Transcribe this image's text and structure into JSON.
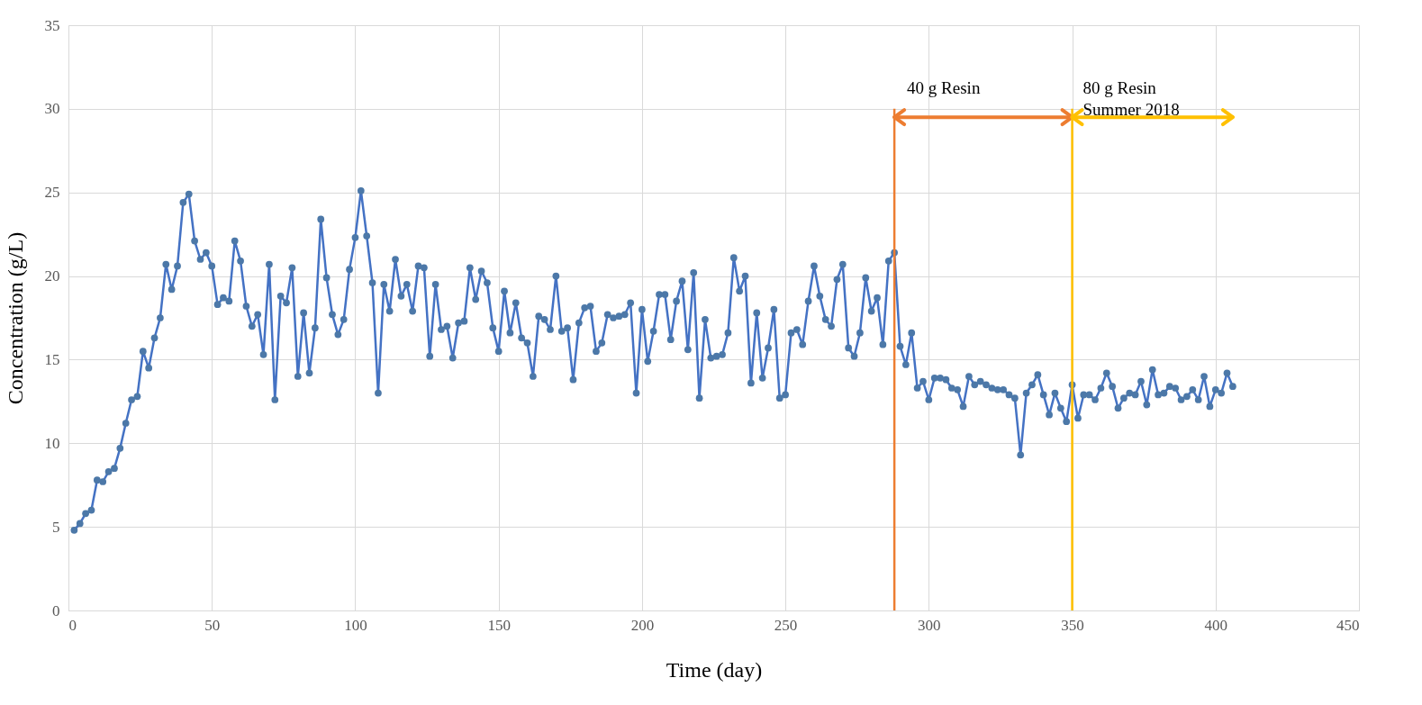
{
  "chart_data": {
    "type": "line",
    "xlabel": "Time (day)",
    "ylabel": "Concentration  (g/L)",
    "xlim": [
      0,
      450
    ],
    "xticks": [
      0,
      50,
      100,
      150,
      200,
      250,
      300,
      350,
      400,
      450
    ],
    "ylim": [
      0,
      35
    ],
    "yticks": [
      0,
      5,
      10,
      15,
      20,
      25,
      30,
      35
    ],
    "grid": true,
    "marker": "circle",
    "line_style": "solid",
    "x": [
      2,
      4,
      6,
      8,
      10,
      12,
      14,
      16,
      18,
      20,
      22,
      24,
      26,
      28,
      30,
      32,
      34,
      36,
      38,
      40,
      42,
      44,
      46,
      48,
      50,
      52,
      54,
      56,
      58,
      60,
      62,
      64,
      66,
      68,
      70,
      72,
      74,
      76,
      78,
      80,
      82,
      84,
      86,
      88,
      90,
      92,
      94,
      96,
      98,
      100,
      102,
      104,
      106,
      108,
      110,
      112,
      114,
      116,
      118,
      120,
      122,
      124,
      126,
      128,
      130,
      132,
      134,
      136,
      138,
      140,
      142,
      144,
      146,
      148,
      150,
      152,
      154,
      156,
      158,
      160,
      162,
      164,
      166,
      168,
      170,
      172,
      174,
      176,
      178,
      180,
      182,
      184,
      186,
      188,
      190,
      192,
      194,
      196,
      198,
      200,
      202,
      204,
      206,
      208,
      210,
      212,
      214,
      216,
      218,
      220,
      222,
      224,
      226,
      228,
      230,
      232,
      234,
      236,
      238,
      240,
      242,
      244,
      246,
      248,
      250,
      252,
      254,
      256,
      258,
      260,
      262,
      264,
      266,
      268,
      270,
      272,
      274,
      276,
      278,
      280,
      282,
      284,
      286,
      288,
      290,
      292,
      294,
      296,
      298,
      300,
      302,
      304,
      306,
      308,
      310,
      312,
      314,
      316,
      318,
      320,
      322,
      324,
      326,
      328,
      330,
      332,
      334,
      336,
      338,
      340,
      342,
      344,
      346,
      348,
      350,
      352,
      354,
      356,
      358,
      360,
      362,
      364,
      366,
      368,
      370,
      372,
      374,
      376,
      378,
      380,
      382,
      384,
      386,
      388,
      390,
      392,
      394,
      396,
      398,
      400,
      402,
      404,
      406
    ],
    "series": [
      {
        "color": "#4472c4",
        "values": [
          4.8,
          5.2,
          5.8,
          6.0,
          7.8,
          7.7,
          8.3,
          8.5,
          9.7,
          11.2,
          12.6,
          12.8,
          15.5,
          14.5,
          16.3,
          17.5,
          20.7,
          19.2,
          20.6,
          24.4,
          24.9,
          22.1,
          21.0,
          21.4,
          20.6,
          18.3,
          18.7,
          18.5,
          22.1,
          20.9,
          18.2,
          17.0,
          17.7,
          15.3,
          20.7,
          12.6,
          18.8,
          18.4,
          20.5,
          14.0,
          17.8,
          14.2,
          16.9,
          23.4,
          19.9,
          17.7,
          16.5,
          17.4,
          20.4,
          22.3,
          25.1,
          22.4,
          19.6,
          13.0,
          19.5,
          17.9,
          21.0,
          18.8,
          19.5,
          17.9,
          20.6,
          20.5,
          15.2,
          19.5,
          16.8,
          17.0,
          15.1,
          17.2,
          17.3,
          20.5,
          18.6,
          20.3,
          19.6,
          16.9,
          15.5,
          19.1,
          16.6,
          18.4,
          16.3,
          16.0,
          14.0,
          17.6,
          17.4,
          16.8,
          20.0,
          16.7,
          16.9,
          13.8,
          17.2,
          18.1,
          18.2,
          15.5,
          16.0,
          17.7,
          17.5,
          17.6,
          17.7,
          18.4,
          13.0,
          18.0,
          14.9,
          16.7,
          18.9,
          18.9,
          16.2,
          18.5,
          19.7,
          15.6,
          20.2,
          12.7,
          17.4,
          15.1,
          15.2,
          15.3,
          16.6,
          21.1,
          19.1,
          20.0,
          13.6,
          17.8,
          13.9,
          15.7,
          18.0,
          12.7,
          12.9,
          16.6,
          16.8,
          15.9,
          18.5,
          20.6,
          18.8,
          17.4,
          17.0,
          19.8,
          20.7,
          15.7,
          15.2,
          16.6,
          19.9,
          17.9,
          18.7,
          15.9,
          20.9,
          21.4,
          15.8,
          14.7,
          16.6,
          13.3,
          13.7,
          12.6,
          13.9,
          13.9,
          13.8,
          13.3,
          13.2,
          12.2,
          14.0,
          13.5,
          13.7,
          13.5,
          13.3,
          13.2,
          13.2,
          12.9,
          12.7,
          9.3,
          13.0,
          13.5,
          14.1,
          12.9,
          11.7,
          13.0,
          12.1,
          11.3,
          13.5,
          11.5,
          12.9,
          12.9,
          12.6,
          13.3,
          14.2,
          13.4,
          12.1,
          12.7,
          13.0,
          12.9,
          13.7,
          12.3,
          14.4,
          12.9,
          13.0,
          13.4,
          13.3,
          12.6,
          12.8,
          13.2,
          12.6,
          14.0,
          12.2,
          13.2,
          13.0,
          14.2,
          13.4
        ]
      }
    ],
    "ref_lines": [
      {
        "axis": "x",
        "value": 288,
        "label": "40 g Resin",
        "color": "#ed7d31"
      },
      {
        "axis": "x",
        "value": 350,
        "label": "80 g Resin\nSummer 2018",
        "color": "#ffc000"
      }
    ]
  }
}
